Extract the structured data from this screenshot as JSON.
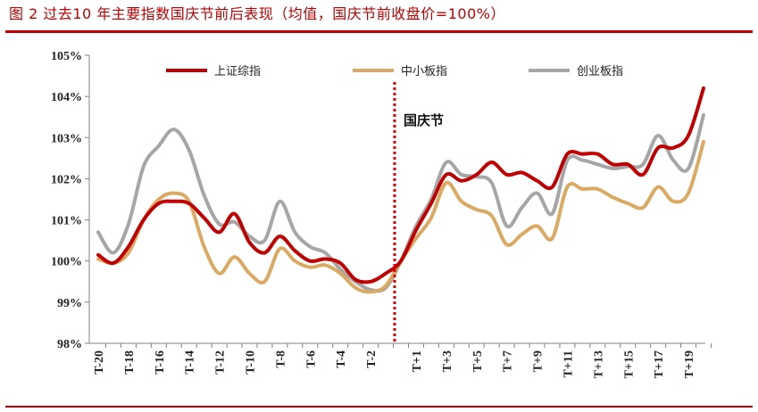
{
  "title": "图 2  过去10 年主要指数国庆节前后表现（均值，国庆节前收盘价=100%）",
  "chart_data": {
    "type": "line",
    "ylim": [
      98,
      105
    ],
    "yticks": [
      98,
      99,
      100,
      101,
      102,
      103,
      104,
      105
    ],
    "ytick_labels": [
      "98%",
      "99%",
      "100%",
      "101%",
      "102%",
      "103%",
      "104%",
      "105%"
    ],
    "x": [
      "T-20",
      "T-19",
      "T-18",
      "T-17",
      "T-16",
      "T-15",
      "T-14",
      "T-13",
      "T-12",
      "T-11",
      "T-10",
      "T-9",
      "T-8",
      "T-7",
      "T-6",
      "T-5",
      "T-4",
      "T-3",
      "T-2",
      "T-1",
      "T",
      "T+1",
      "T+2",
      "T+3",
      "T+4",
      "T+5",
      "T+6",
      "T+7",
      "T+8",
      "T+9",
      "T+10",
      "T+11",
      "T+12",
      "T+13",
      "T+14",
      "T+15",
      "T+16",
      "T+17",
      "T+18",
      "T+19",
      "T+20"
    ],
    "xtick_labels": [
      "T-20",
      "T-18",
      "T-16",
      "T-14",
      "T-12",
      "T-10",
      "T-8",
      "T-6",
      "T-4",
      "T-2",
      "T+1",
      "T+3",
      "T+5",
      "T+7",
      "T+9",
      "T+11",
      "T+13",
      "T+15",
      "T+17",
      "T+19"
    ],
    "xtick_index": [
      0,
      2,
      4,
      6,
      8,
      10,
      12,
      14,
      16,
      18,
      21,
      23,
      25,
      27,
      29,
      31,
      33,
      35,
      37,
      39
    ],
    "annotation": {
      "label": "国庆节",
      "x_index": 20
    },
    "series": [
      {
        "name": "上证综指",
        "color": "#c00000",
        "values": [
          100.15,
          99.95,
          100.35,
          101.0,
          101.4,
          101.45,
          101.4,
          101.05,
          100.7,
          101.15,
          100.45,
          100.2,
          100.6,
          100.25,
          100.0,
          100.05,
          99.95,
          99.55,
          99.5,
          99.7,
          100.0,
          100.75,
          101.4,
          102.1,
          101.95,
          102.1,
          102.4,
          102.1,
          102.15,
          101.95,
          101.8,
          102.6,
          102.6,
          102.6,
          102.35,
          102.35,
          102.1,
          102.75,
          102.75,
          103.05,
          104.2
        ]
      },
      {
        "name": "中小板指",
        "color": "#dba961",
        "values": [
          100.05,
          99.95,
          100.2,
          101.0,
          101.5,
          101.65,
          101.45,
          100.35,
          99.7,
          100.1,
          99.7,
          99.5,
          100.3,
          100.0,
          99.85,
          99.9,
          99.7,
          99.35,
          99.25,
          99.4,
          100.0,
          100.55,
          101.05,
          101.9,
          101.45,
          101.25,
          101.1,
          100.4,
          100.65,
          100.85,
          100.55,
          101.8,
          101.75,
          101.75,
          101.55,
          101.4,
          101.3,
          101.8,
          101.45,
          101.65,
          102.9
        ]
      },
      {
        "name": "创业板指",
        "color": "#a6a6a6",
        "values": [
          100.7,
          100.2,
          100.9,
          102.3,
          102.8,
          103.2,
          102.7,
          101.6,
          100.9,
          100.95,
          100.6,
          100.5,
          101.45,
          100.7,
          100.35,
          100.2,
          99.8,
          99.5,
          99.3,
          99.35,
          100.0,
          100.85,
          101.5,
          102.4,
          102.1,
          102.05,
          101.9,
          100.85,
          101.3,
          101.65,
          101.15,
          102.45,
          102.45,
          102.35,
          102.25,
          102.3,
          102.35,
          103.05,
          102.45,
          102.25,
          103.55
        ]
      }
    ]
  }
}
